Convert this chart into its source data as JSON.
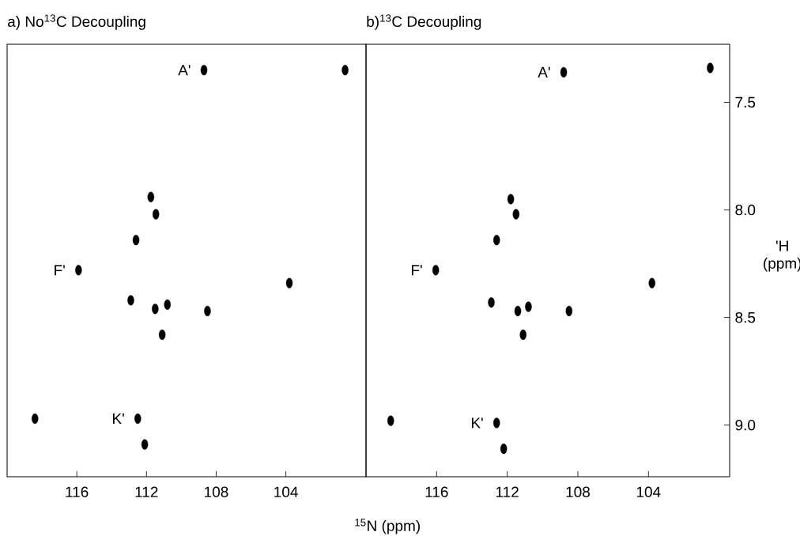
{
  "chart_data": [
    {
      "type": "scatter",
      "title": "a) No$^{13}$C Decoupling",
      "xlabel": "$^{15}$N (ppm)",
      "xlim": [
        120,
        99.4
      ],
      "ylim": [
        9.24,
        7.23
      ],
      "xticks": [
        116,
        112,
        108,
        104
      ],
      "tick_labels": "x",
      "series": [
        {
          "color": "#000000",
          "x": [
            108.7,
            100.6,
            111.75,
            111.46,
            112.6,
            115.9,
            103.8,
            112.9,
            111.5,
            110.8,
            108.5,
            111.1,
            118.4,
            112.5,
            112.1
          ],
          "values": [
            7.35,
            7.35,
            7.94,
            8.02,
            8.14,
            8.28,
            8.34,
            8.42,
            8.46,
            8.44,
            8.47,
            8.58,
            8.97,
            8.97,
            9.09
          ]
        }
      ],
      "annotations": [
        {
          "text": "A'",
          "x": 108.7,
          "y": 7.35
        },
        {
          "text": "F'",
          "x": 115.9,
          "y": 8.28
        },
        {
          "text": "K'",
          "x": 112.5,
          "y": 8.97
        }
      ]
    },
    {
      "type": "scatter",
      "title": "b)$^{13}$C Decoupling",
      "ylabel": "'H (ppm)",
      "xlim": [
        120,
        99.4
      ],
      "ylim": [
        9.24,
        7.23
      ],
      "xticks": [
        116,
        112,
        108,
        104
      ],
      "yticks": [
        7.5,
        {
          "value": 8,
          "label": "8.0"
        },
        8.5,
        {
          "value": 9,
          "label": "9.0"
        }
      ],
      "series": [
        {
          "color": "#000000",
          "x": [
            108.8,
            100.5,
            111.8,
            111.5,
            112.6,
            116.05,
            103.8,
            112.9,
            111.4,
            110.8,
            108.5,
            111.1,
            118.6,
            112.6,
            112.2
          ],
          "values": [
            7.36,
            7.34,
            7.95,
            8.02,
            8.14,
            8.28,
            8.34,
            8.43,
            8.47,
            8.45,
            8.47,
            8.58,
            8.98,
            8.99,
            9.11
          ]
        }
      ],
      "annotations": [
        {
          "text": "A'",
          "x": 108.8,
          "y": 7.36
        },
        {
          "text": "F'",
          "x": 116.05,
          "y": 8.28
        },
        {
          "text": "K'",
          "x": 112.6,
          "y": 8.99
        }
      ]
    }
  ]
}
